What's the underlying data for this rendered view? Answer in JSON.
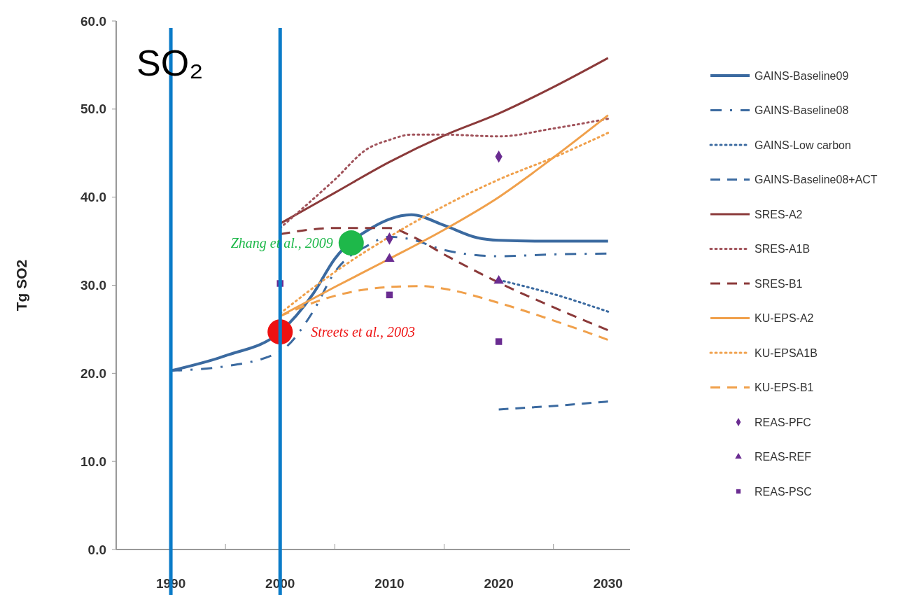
{
  "chart_data": {
    "type": "line",
    "ylabel": "Tg SO2",
    "annotations": [
      "SO₂",
      {
        "text": "Zhang et al., 2009",
        "x": 2006.5,
        "y": 34.8
      },
      {
        "text": "Streets et al., 2003",
        "x": 2000,
        "y": 24.7
      }
    ],
    "xlim": [
      1985,
      2032
    ],
    "ylim": [
      0,
      60
    ],
    "xticks": [
      {
        "value": 1990,
        "label": "1990"
      },
      {
        "value": 1995,
        "label": null
      },
      {
        "value": 2000,
        "label": "2000"
      },
      {
        "value": 2005,
        "label": null
      },
      {
        "value": 2010,
        "label": "2010"
      },
      {
        "value": 2015,
        "label": null
      },
      {
        "value": 2020,
        "label": "2020"
      },
      {
        "value": 2025,
        "label": null
      },
      {
        "value": 2030,
        "label": "2030"
      }
    ],
    "yticks": [
      {
        "value": 0,
        "label": "0.0"
      },
      {
        "value": 10,
        "label": "10.0"
      },
      {
        "value": 20,
        "label": "20.0"
      },
      {
        "value": 30,
        "label": "30.0"
      },
      {
        "value": 40,
        "label": "40.0"
      },
      {
        "value": 50,
        "label": "50.0"
      },
      {
        "value": 60,
        "label": "60.0"
      }
    ],
    "grid": false,
    "legend": "right",
    "ref_lines": [
      {
        "axis": "x",
        "value": 1990,
        "color": "#0a7bc8"
      },
      {
        "axis": "x",
        "value": 2000,
        "color": "#0a7bc8"
      }
    ],
    "series": [
      {
        "name": "GAINS-Baseline09",
        "color": "#3b6aa0",
        "line_style": "solid",
        "x": [
          1990,
          1995,
          2000,
          2003,
          2005,
          2008.5,
          2010,
          2012,
          2015,
          2018,
          2020,
          2025,
          2030
        ],
        "values": [
          20.3,
          22.0,
          24.7,
          29,
          33,
          36.6,
          37.5,
          38.0,
          36.8,
          35.4,
          35.1,
          35.0,
          35.0
        ]
      },
      {
        "name": "GAINS-Baseline08",
        "color": "#3b6aa0",
        "line_style": "dashdot",
        "x": [
          1990,
          1995,
          2000,
          2003,
          2005,
          2008,
          2010,
          2012,
          2015,
          2020,
          2025,
          2030
        ],
        "values": [
          20.3,
          20.8,
          22.5,
          27,
          31.5,
          34.5,
          35.5,
          35.2,
          34.0,
          33.3,
          33.5,
          33.6
        ]
      },
      {
        "name": "GAINS-Low carbon",
        "color": "#3b6aa0",
        "line_style": "dotted",
        "x": [
          2020,
          2025,
          2030
        ],
        "values": [
          30.6,
          29.0,
          27.0
        ]
      },
      {
        "name": "GAINS-Baseline08+ACT",
        "color": "#3b6aa0",
        "line_style": "dashed",
        "x": [
          2020,
          2025,
          2030
        ],
        "values": [
          15.9,
          16.3,
          16.8
        ]
      },
      {
        "name": "SRES-A2",
        "color": "#8b3a3a",
        "line_style": "solid",
        "x": [
          2000,
          2005,
          2010,
          2015,
          2020,
          2025,
          2030
        ],
        "values": [
          37.0,
          40.5,
          44.0,
          47.0,
          49.5,
          52.5,
          55.8
        ]
      },
      {
        "name": "SRES-A1B",
        "color": "#a0525a",
        "line_style": "dotted",
        "x": [
          2000,
          2005,
          2008,
          2010,
          2012,
          2015,
          2020,
          2025,
          2030
        ],
        "values": [
          36.5,
          42,
          45.5,
          46.5,
          47.1,
          47.1,
          46.9,
          47.8,
          48.9
        ]
      },
      {
        "name": "SRES-B1",
        "color": "#8b3a3a",
        "line_style": "dashed",
        "x": [
          2000,
          2005,
          2010,
          2012,
          2015,
          2020,
          2025,
          2030
        ],
        "values": [
          35.8,
          36.5,
          36.5,
          35.6,
          33.5,
          30.3,
          27.5,
          24.9
        ]
      },
      {
        "name": "KU-EPS-A2",
        "color": "#f0a04b",
        "line_style": "solid",
        "x": [
          2000,
          2005,
          2010,
          2015,
          2020,
          2025,
          2030
        ],
        "values": [
          26.5,
          29.8,
          33.0,
          36.3,
          40.0,
          44.5,
          49.3
        ]
      },
      {
        "name": "KU-EPSA1B",
        "color": "#f0a04b",
        "line_style": "dotted",
        "x": [
          2000,
          2005,
          2010,
          2015,
          2020,
          2025,
          2030
        ],
        "values": [
          26.8,
          31.5,
          35.5,
          39.0,
          42.0,
          44.5,
          47.3
        ]
      },
      {
        "name": "KU-EPS-B1",
        "color": "#f0a04b",
        "line_style": "dashed",
        "x": [
          2000,
          2005,
          2010,
          2013,
          2015,
          2020,
          2025,
          2030
        ],
        "values": [
          26.5,
          28.8,
          29.8,
          29.9,
          29.6,
          28.0,
          26.0,
          23.8
        ]
      },
      {
        "name": "REAS-PFC",
        "type": "scatter",
        "marker": "diamond",
        "color": "#6a2c91",
        "x": [
          2010,
          2020
        ],
        "values": [
          35.3,
          44.6
        ]
      },
      {
        "name": "REAS-REF",
        "type": "scatter",
        "marker": "triangle",
        "color": "#6a2c91",
        "x": [
          2010,
          2020
        ],
        "values": [
          33.0,
          30.5
        ]
      },
      {
        "name": "REAS-PSC",
        "type": "scatter",
        "marker": "square",
        "color": "#6a2c91",
        "x": [
          2000,
          2010,
          2020
        ],
        "values": [
          30.2,
          28.9,
          23.6
        ]
      },
      {
        "type": "bubble",
        "color": "#1eb84a",
        "x": [
          2006.5
        ],
        "values": [
          34.8
        ],
        "sizes": [
          1
        ]
      },
      {
        "type": "bubble",
        "color": "#ee1111",
        "x": [
          2000
        ],
        "values": [
          24.7
        ],
        "sizes": [
          1
        ]
      }
    ]
  }
}
